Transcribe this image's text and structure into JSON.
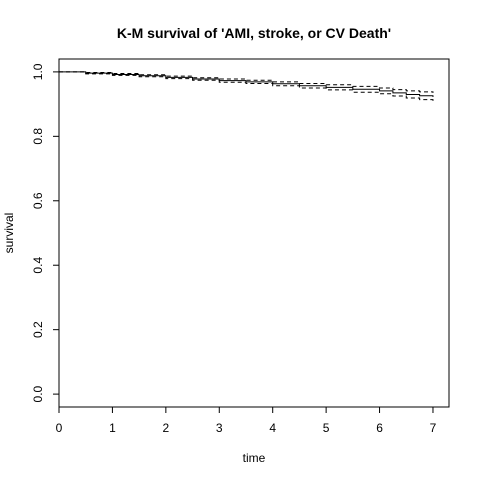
{
  "chart_data": {
    "type": "line",
    "title": "K-M survival of 'AMI, stroke, or CV Death'",
    "xlabel": "time",
    "ylabel": "survival",
    "xlim": [
      0,
      7.3
    ],
    "ylim": [
      -0.04,
      1.04
    ],
    "xticks": [
      "0",
      "1",
      "2",
      "3",
      "4",
      "5",
      "6",
      "7"
    ],
    "yticks": [
      "0.0",
      "0.2",
      "0.4",
      "0.6",
      "0.8",
      "1.0"
    ],
    "grid": false,
    "series": [
      {
        "style": "solid",
        "x": [
          0,
          0.5,
          1,
          1.5,
          2,
          2.5,
          3,
          3.5,
          4,
          4.5,
          5,
          5.5,
          6,
          6.25,
          6.5,
          6.75,
          7
        ],
        "values": [
          1.0,
          0.996,
          0.992,
          0.988,
          0.983,
          0.978,
          0.973,
          0.969,
          0.963,
          0.957,
          0.952,
          0.946,
          0.941,
          0.935,
          0.93,
          0.926,
          0.922
        ]
      },
      {
        "style": "dashed",
        "x": [
          0,
          0.5,
          1,
          1.5,
          2,
          2.5,
          3,
          3.5,
          4,
          4.5,
          5,
          5.5,
          6,
          6.25,
          6.5,
          6.75,
          7
        ],
        "values": [
          1.0,
          0.998,
          0.995,
          0.991,
          0.987,
          0.982,
          0.978,
          0.974,
          0.969,
          0.964,
          0.96,
          0.955,
          0.95,
          0.945,
          0.941,
          0.938,
          0.935
        ]
      },
      {
        "style": "dashed",
        "x": [
          0,
          0.5,
          1,
          1.5,
          2,
          2.5,
          3,
          3.5,
          4,
          4.5,
          5,
          5.5,
          6,
          6.25,
          6.5,
          6.75,
          7
        ],
        "values": [
          1.0,
          0.994,
          0.989,
          0.985,
          0.979,
          0.974,
          0.968,
          0.964,
          0.957,
          0.95,
          0.944,
          0.937,
          0.932,
          0.925,
          0.919,
          0.914,
          0.908
        ]
      }
    ]
  }
}
